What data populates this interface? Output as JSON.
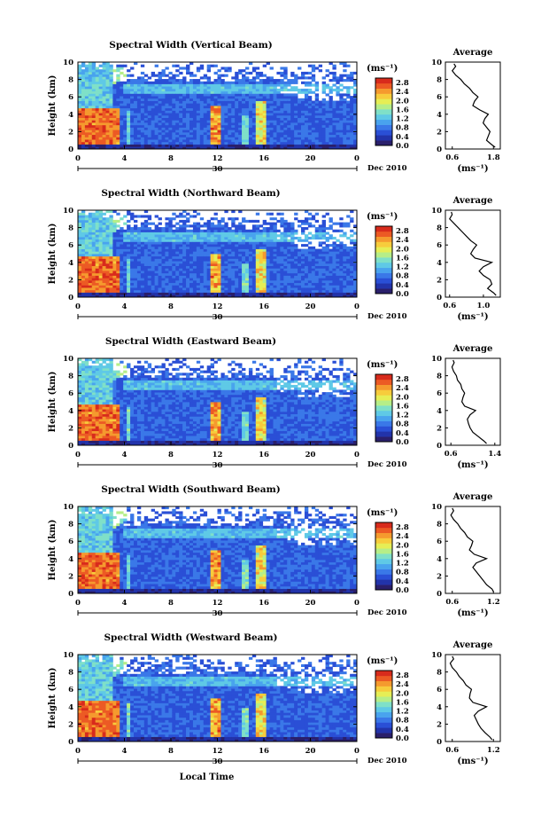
{
  "colors": {
    "colormap": [
      "#2a1f6b",
      "#2233aa",
      "#2a4fd6",
      "#3a78e8",
      "#49a3ee",
      "#5fc9e6",
      "#7fe0c8",
      "#b6ee88",
      "#e6ee55",
      "#f7cc3c",
      "#f59a2e",
      "#ec5a24",
      "#d82b1c"
    ],
    "line": "#000000",
    "background": "#ffffff"
  },
  "shared": {
    "x_label": "Local Time",
    "date_label": "Dec 2010",
    "day_label": "30",
    "x_ticks": [
      "0",
      "4",
      "8",
      "12",
      "16",
      "20",
      "0"
    ],
    "y_label": "Height (km)",
    "y_ticks": [
      "0",
      "2",
      "4",
      "6",
      "8",
      "10"
    ],
    "unit_label": "(ms⁻¹)",
    "colorbar_ticks": [
      "0.0",
      "0.4",
      "0.8",
      "1.2",
      "1.6",
      "2.0",
      "2.4",
      "2.8"
    ],
    "average_title": "Average",
    "average_xlabel": "(ms⁻¹)"
  },
  "chart_data": [
    {
      "type": "heatmap",
      "title": "Spectral Width (Vertical Beam)",
      "xlabel": "Local Time",
      "ylabel": "Height (km)",
      "xlim": [
        0,
        24
      ],
      "ylim": [
        0,
        10
      ],
      "clim": [
        0.0,
        3.0
      ],
      "average_profile": {
        "x_ticks": [
          "0.6",
          "1.8"
        ],
        "xlim": [
          0.4,
          2.0
        ],
        "height": [
          0.2,
          0.5,
          1.0,
          1.5,
          2.0,
          2.5,
          3.0,
          3.5,
          4.0,
          4.5,
          5.0,
          5.5,
          6.0,
          6.5,
          7.0,
          7.5,
          8.0,
          8.5,
          9.0,
          9.5,
          9.8
        ],
        "value": [
          1.85,
          1.75,
          1.6,
          1.65,
          1.7,
          1.6,
          1.5,
          1.55,
          1.65,
          1.4,
          1.2,
          1.25,
          1.35,
          1.2,
          1.1,
          0.95,
          0.85,
          0.7,
          0.6,
          0.7,
          0.65
        ]
      }
    },
    {
      "type": "heatmap",
      "title": "Spectral Width (Northward Beam)",
      "xlabel": "Local Time",
      "ylabel": "Height (km)",
      "xlim": [
        0,
        24
      ],
      "ylim": [
        0,
        10
      ],
      "clim": [
        0.0,
        3.0
      ],
      "average_profile": {
        "x_ticks": [
          "0.6",
          "1.0"
        ],
        "xlim": [
          0.55,
          1.2
        ],
        "height": [
          0.2,
          0.5,
          1.0,
          1.5,
          2.0,
          2.5,
          3.0,
          3.5,
          4.0,
          4.5,
          5.0,
          5.5,
          6.0,
          6.5,
          7.0,
          7.5,
          8.0,
          8.5,
          9.0,
          9.5,
          9.8
        ],
        "value": [
          1.15,
          1.12,
          1.05,
          1.1,
          1.08,
          1.0,
          0.95,
          1.0,
          1.1,
          0.9,
          0.85,
          0.88,
          0.92,
          0.85,
          0.8,
          0.75,
          0.7,
          0.65,
          0.6,
          0.63,
          0.62
        ]
      }
    },
    {
      "type": "heatmap",
      "title": "Spectral Width (Eastward Beam)",
      "xlabel": "Local Time",
      "ylabel": "Height (km)",
      "xlim": [
        0,
        24
      ],
      "ylim": [
        0,
        10
      ],
      "clim": [
        0.0,
        3.0
      ],
      "average_profile": {
        "x_ticks": [
          "0.6",
          "1.4"
        ],
        "xlim": [
          0.5,
          1.5
        ],
        "height": [
          0.2,
          0.5,
          1.0,
          1.5,
          2.0,
          2.5,
          3.0,
          3.5,
          4.0,
          4.5,
          5.0,
          5.5,
          6.0,
          6.5,
          7.0,
          7.5,
          8.0,
          8.5,
          9.0,
          9.5,
          9.8
        ],
        "value": [
          1.25,
          1.2,
          1.1,
          1.0,
          0.95,
          0.92,
          0.9,
          0.95,
          1.05,
          0.85,
          0.8,
          0.82,
          0.85,
          0.8,
          0.78,
          0.72,
          0.7,
          0.65,
          0.62,
          0.66,
          0.64
        ]
      }
    },
    {
      "type": "heatmap",
      "title": "Spectral Width (Southward Beam)",
      "xlabel": "Local Time",
      "ylabel": "Height (km)",
      "xlim": [
        0,
        24
      ],
      "ylim": [
        0,
        10
      ],
      "clim": [
        0.0,
        3.0
      ],
      "average_profile": {
        "x_ticks": [
          "0.6",
          "1.2"
        ],
        "xlim": [
          0.5,
          1.3
        ],
        "height": [
          0.2,
          0.5,
          1.0,
          1.5,
          2.0,
          2.5,
          3.0,
          3.5,
          4.0,
          4.5,
          5.0,
          5.5,
          6.0,
          6.5,
          7.0,
          7.5,
          8.0,
          8.5,
          9.0,
          9.5,
          9.8
        ],
        "value": [
          1.2,
          1.18,
          1.1,
          1.05,
          1.0,
          0.95,
          0.9,
          0.95,
          1.1,
          0.92,
          0.85,
          0.88,
          0.9,
          0.82,
          0.78,
          0.72,
          0.68,
          0.62,
          0.58,
          0.62,
          0.6
        ]
      }
    },
    {
      "type": "heatmap",
      "title": "Spectral Width (Westward Beam)",
      "xlabel": "Local Time",
      "ylabel": "Height (km)",
      "xlim": [
        0,
        24
      ],
      "ylim": [
        0,
        10
      ],
      "clim": [
        0.0,
        3.0
      ],
      "average_profile": {
        "x_ticks": [
          "0.6",
          "1.2"
        ],
        "xlim": [
          0.5,
          1.3
        ],
        "height": [
          0.2,
          0.5,
          1.0,
          1.5,
          2.0,
          2.5,
          3.0,
          3.5,
          4.0,
          4.5,
          5.0,
          5.5,
          6.0,
          6.5,
          7.0,
          7.5,
          8.0,
          8.5,
          9.0,
          9.5,
          9.8
        ],
        "value": [
          1.18,
          1.15,
          1.08,
          1.02,
          0.98,
          0.95,
          0.92,
          0.98,
          1.1,
          0.9,
          0.85,
          0.86,
          0.88,
          0.8,
          0.76,
          0.7,
          0.66,
          0.6,
          0.57,
          0.62,
          0.6
        ]
      }
    }
  ]
}
